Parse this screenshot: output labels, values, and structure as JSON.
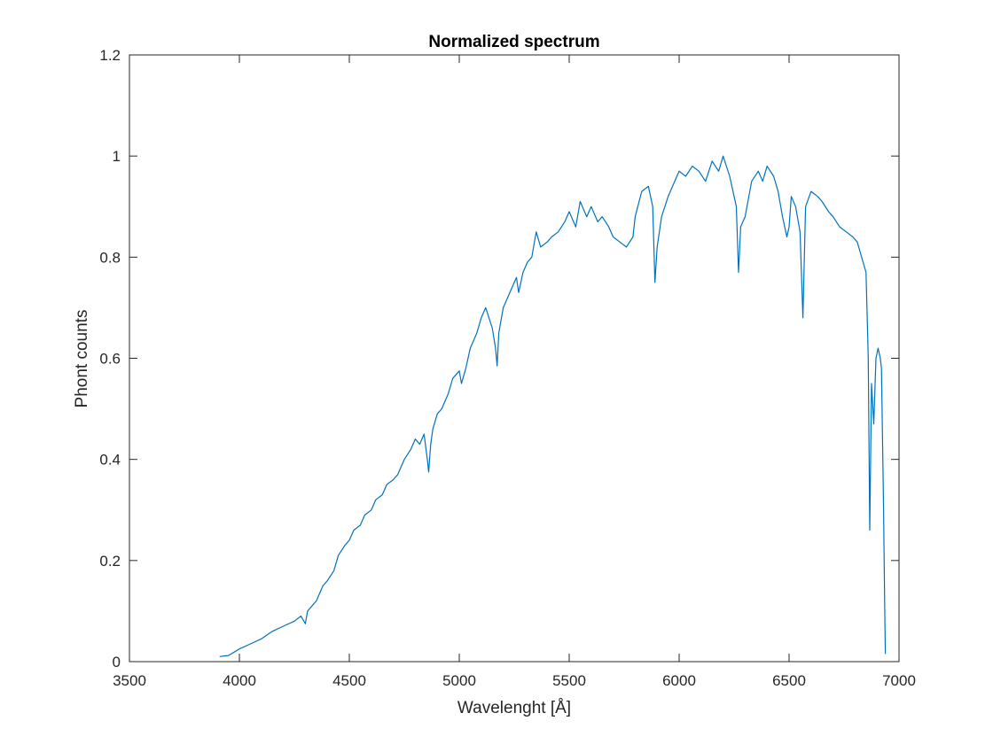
{
  "chart_data": {
    "type": "line",
    "title": "Normalized spectrum",
    "xlabel": "Wavelenght [Å]",
    "ylabel": "Phont counts",
    "xlim": [
      3500,
      7000
    ],
    "ylim": [
      0,
      1.2
    ],
    "xticks": [
      3500,
      4000,
      4500,
      5000,
      5500,
      6000,
      6500,
      7000
    ],
    "yticks": [
      0,
      0.2,
      0.4,
      0.6,
      0.8,
      1,
      1.2
    ],
    "xtick_labels": [
      "3500",
      "4000",
      "4500",
      "5000",
      "5500",
      "6000",
      "6500",
      "7000"
    ],
    "ytick_labels": [
      "0",
      "0.2",
      "0.4",
      "0.6",
      "0.8",
      "1",
      "1.2"
    ],
    "grid": false,
    "series_color": "#0072BD",
    "series": [
      {
        "x": [
          3910,
          3950,
          4000,
          4050,
          4100,
          4150,
          4200,
          4250,
          4280,
          4300,
          4310,
          4330,
          4350,
          4380,
          4400,
          4430,
          4450,
          4480,
          4500,
          4520,
          4550,
          4570,
          4600,
          4620,
          4650,
          4670,
          4700,
          4720,
          4750,
          4780,
          4800,
          4820,
          4840,
          4855,
          4861,
          4870,
          4880,
          4900,
          4920,
          4950,
          4970,
          5000,
          5010,
          5030,
          5050,
          5080,
          5100,
          5120,
          5150,
          5165,
          5172,
          5180,
          5200,
          5220,
          5240,
          5260,
          5270,
          5290,
          5310,
          5330,
          5350,
          5370,
          5400,
          5420,
          5450,
          5480,
          5500,
          5530,
          5550,
          5580,
          5600,
          5630,
          5650,
          5680,
          5700,
          5730,
          5760,
          5790,
          5800,
          5830,
          5860,
          5880,
          5890,
          5900,
          5920,
          5950,
          5980,
          6000,
          6030,
          6060,
          6090,
          6120,
          6150,
          6180,
          6200,
          6230,
          6260,
          6270,
          6280,
          6300,
          6330,
          6360,
          6380,
          6400,
          6430,
          6450,
          6470,
          6490,
          6500,
          6510,
          6530,
          6550,
          6563,
          6575,
          6600,
          6630,
          6650,
          6680,
          6700,
          6730,
          6760,
          6790,
          6810,
          6830,
          6850,
          6860,
          6867,
          6875,
          6885,
          6895,
          6905,
          6915,
          6920,
          6930,
          6935,
          6938
        ],
        "y": [
          0.01,
          0.012,
          0.025,
          0.035,
          0.045,
          0.06,
          0.07,
          0.08,
          0.09,
          0.075,
          0.1,
          0.11,
          0.12,
          0.15,
          0.16,
          0.18,
          0.21,
          0.23,
          0.24,
          0.26,
          0.27,
          0.29,
          0.3,
          0.32,
          0.33,
          0.35,
          0.36,
          0.37,
          0.4,
          0.42,
          0.44,
          0.43,
          0.45,
          0.4,
          0.375,
          0.43,
          0.46,
          0.49,
          0.5,
          0.53,
          0.56,
          0.575,
          0.55,
          0.58,
          0.62,
          0.65,
          0.68,
          0.7,
          0.66,
          0.62,
          0.585,
          0.65,
          0.7,
          0.72,
          0.74,
          0.76,
          0.73,
          0.77,
          0.79,
          0.8,
          0.85,
          0.82,
          0.83,
          0.84,
          0.85,
          0.87,
          0.89,
          0.86,
          0.91,
          0.88,
          0.9,
          0.87,
          0.88,
          0.86,
          0.84,
          0.83,
          0.82,
          0.84,
          0.88,
          0.93,
          0.94,
          0.9,
          0.75,
          0.82,
          0.88,
          0.92,
          0.95,
          0.97,
          0.96,
          0.98,
          0.97,
          0.95,
          0.99,
          0.97,
          1.0,
          0.96,
          0.9,
          0.77,
          0.86,
          0.88,
          0.95,
          0.97,
          0.95,
          0.98,
          0.96,
          0.93,
          0.88,
          0.84,
          0.86,
          0.92,
          0.9,
          0.85,
          0.68,
          0.9,
          0.93,
          0.92,
          0.91,
          0.89,
          0.88,
          0.86,
          0.85,
          0.84,
          0.83,
          0.8,
          0.77,
          0.6,
          0.26,
          0.55,
          0.47,
          0.6,
          0.62,
          0.6,
          0.58,
          0.3,
          0.1,
          0.015
        ]
      }
    ]
  }
}
